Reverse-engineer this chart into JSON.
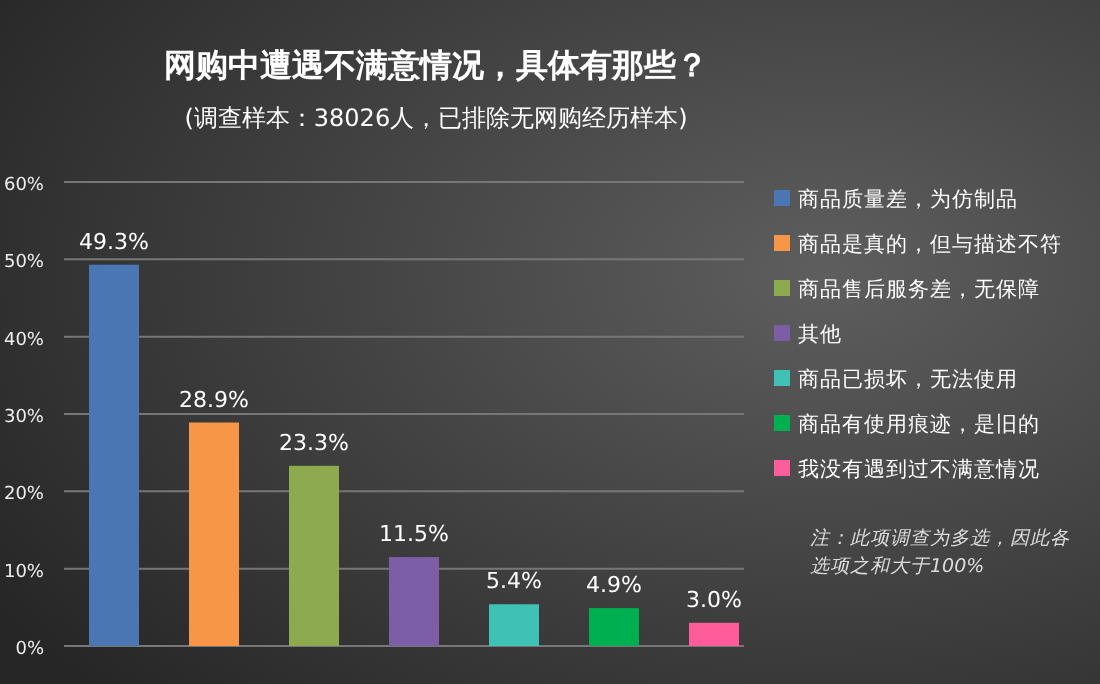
{
  "chart_data": {
    "type": "bar",
    "title": "网购中遭遇不满意情况，具体有那些？",
    "subtitle": "(调查样本：38026人，已排除无网购经历样本)",
    "categories": [
      null,
      null,
      null,
      null,
      null,
      null,
      null
    ],
    "series": [
      {
        "name": "商品质量差，为仿制品",
        "color": "#4a76b4",
        "values": [
          49.3,
          null,
          null,
          null,
          null,
          null,
          null
        ],
        "value_labels": [
          "49.3%",
          null,
          null,
          null,
          null,
          null,
          null
        ]
      },
      {
        "name": "商品是真的，但与描述不符",
        "color": "#f79646",
        "values": [
          null,
          28.9,
          null,
          null,
          null,
          null,
          null
        ],
        "value_labels": [
          null,
          "28.9%",
          null,
          null,
          null,
          null,
          null
        ]
      },
      {
        "name": "商品售后服务差，无保障",
        "color": "#8eaa4f",
        "values": [
          null,
          null,
          23.3,
          null,
          null,
          null,
          null
        ],
        "value_labels": [
          null,
          null,
          "23.3%",
          null,
          null,
          null,
          null
        ]
      },
      {
        "name": "其他",
        "color": "#7b5ea6",
        "values": [
          null,
          null,
          null,
          11.5,
          null,
          null,
          null
        ],
        "value_labels": [
          null,
          null,
          null,
          "11.5%",
          null,
          null,
          null
        ]
      },
      {
        "name": "商品已损坏，无法使用",
        "color": "#3fc1b5",
        "values": [
          null,
          null,
          null,
          null,
          5.4,
          null,
          null
        ],
        "value_labels": [
          null,
          null,
          null,
          null,
          "5.4%",
          null,
          null
        ]
      },
      {
        "name": "商品有使用痕迹，是旧的",
        "color": "#00b050",
        "values": [
          null,
          null,
          null,
          null,
          null,
          4.9,
          null
        ],
        "value_labels": [
          null,
          null,
          null,
          null,
          null,
          "4.9%",
          null
        ]
      },
      {
        "name": "我没有遇到过不满意情况",
        "color": "#ff5c9a",
        "values": [
          null,
          null,
          null,
          null,
          null,
          null,
          3.0
        ],
        "value_labels": [
          null,
          null,
          null,
          null,
          null,
          null,
          "3.0%"
        ]
      }
    ],
    "ylim": [
      0,
      60
    ],
    "yticks": [
      {
        "value": 0,
        "label": "0%"
      },
      {
        "value": 10,
        "label": "10%"
      },
      {
        "value": 20,
        "label": "20%"
      },
      {
        "value": 30,
        "label": "30%"
      },
      {
        "value": 40,
        "label": "40%"
      },
      {
        "value": 50,
        "label": "50%"
      },
      {
        "value": 60,
        "label": "60%"
      }
    ],
    "grid": "y",
    "legend": "right",
    "annotations": [
      "注：此项调查为多选，因此各选项之和大于100%"
    ]
  }
}
